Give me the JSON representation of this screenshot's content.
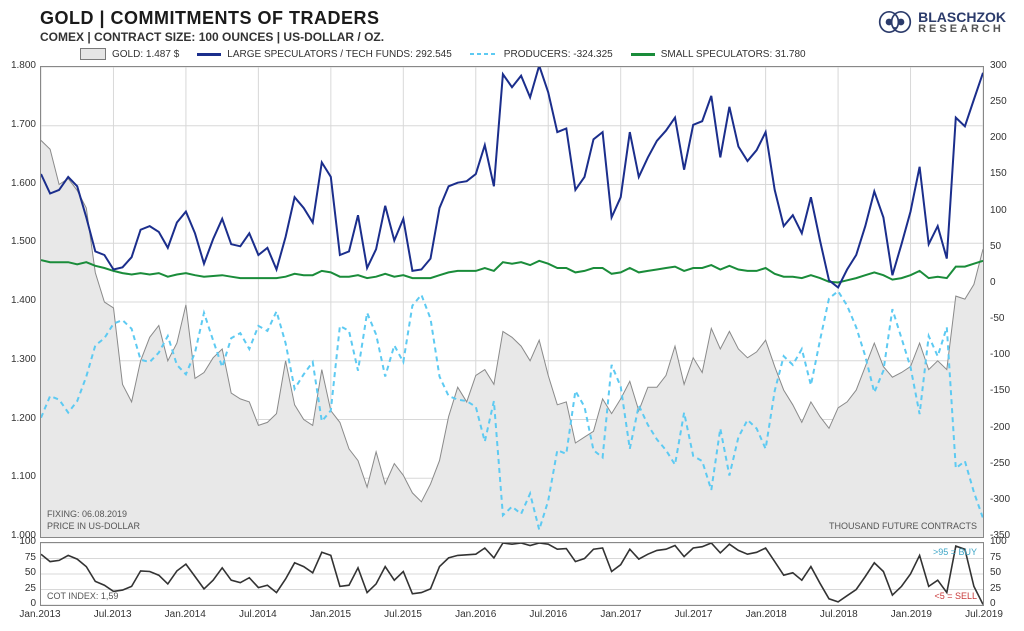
{
  "title": "GOLD | COMMITMENTS OF TRADERS",
  "subtitle": "COMEX | CONTRACT SIZE: 100 OUNCES | US-DOLLAR / OZ.",
  "logo": {
    "line1": "BLASCHZOK",
    "line2": "RESEARCH"
  },
  "fixing_text": "FIXING: 06.08.2019",
  "price_unit_text": "PRICE IN US-DOLLAR",
  "right_unit_text": "THOUSAND FUTURE CONTRACTS",
  "cot_index_text": "COT INDEX: 1,59",
  "buy_label": ">95 = BUY",
  "sell_label": "<5 = SELL",
  "legend": {
    "gold": {
      "label": "GOLD: 1.487 $",
      "color": "#e5e5e5",
      "stroke": "#7a7a7a"
    },
    "large_spec": {
      "label": "LARGE SPECULATORS / TECH FUNDS: 292.545",
      "color": "#1b2e8c"
    },
    "producers": {
      "label": "PRODUCERS: -324.325",
      "color": "#5dcaf2"
    },
    "small_spec": {
      "label": "SMALL SPECULATORS: 31.780",
      "color": "#1a8c3a"
    }
  },
  "colors": {
    "grid": "#d8d8d8",
    "axis": "#888888",
    "gold_fill": "#e8e8e8",
    "gold_stroke": "#8a8a8a",
    "large_spec": "#1b2e8c",
    "producers": "#5dcaf2",
    "small_spec": "#1a8c3a",
    "cot": "#333333",
    "buy_text": "#3ea6c7",
    "sell_text": "#c93b3b",
    "text": "#333333"
  },
  "main_chart": {
    "left_axis": {
      "min": 1000,
      "max": 1800,
      "step": 100
    },
    "right_axis": {
      "min": -350,
      "max": 300,
      "step": 50
    },
    "x_labels": [
      "Jan.2013",
      "Jul.2013",
      "Jan.2014",
      "Jul.2014",
      "Jan.2015",
      "Jul.2015",
      "Jan.2016",
      "Jul.2016",
      "Jan.2017",
      "Jul.2017",
      "Jan.2018",
      "Jul.2018",
      "Jan.2019",
      "Jul.2019"
    ],
    "gold_series": [
      1675,
      1660,
      1600,
      1610,
      1590,
      1560,
      1450,
      1400,
      1390,
      1260,
      1230,
      1300,
      1340,
      1360,
      1300,
      1330,
      1395,
      1270,
      1280,
      1305,
      1320,
      1245,
      1235,
      1230,
      1190,
      1195,
      1210,
      1300,
      1225,
      1200,
      1190,
      1285,
      1215,
      1195,
      1150,
      1130,
      1085,
      1145,
      1090,
      1125,
      1105,
      1075,
      1060,
      1090,
      1130,
      1205,
      1255,
      1230,
      1275,
      1285,
      1260,
      1350,
      1340,
      1325,
      1300,
      1335,
      1275,
      1225,
      1230,
      1160,
      1170,
      1180,
      1235,
      1210,
      1235,
      1265,
      1215,
      1255,
      1255,
      1275,
      1325,
      1260,
      1305,
      1280,
      1355,
      1320,
      1350,
      1320,
      1305,
      1315,
      1335,
      1290,
      1250,
      1225,
      1195,
      1230,
      1205,
      1185,
      1220,
      1230,
      1250,
      1290,
      1330,
      1290,
      1272,
      1280,
      1290,
      1330,
      1285,
      1300,
      1285,
      1410,
      1405,
      1430,
      1490
    ],
    "large_spec_series": [
      152,
      125,
      130,
      148,
      135,
      92,
      45,
      40,
      20,
      23,
      37,
      75,
      80,
      72,
      50,
      85,
      100,
      70,
      28,
      62,
      90,
      55,
      52,
      70,
      40,
      50,
      20,
      65,
      120,
      105,
      85,
      168,
      148,
      40,
      45,
      95,
      22,
      48,
      108,
      60,
      90,
      18,
      20,
      35,
      105,
      135,
      140,
      142,
      152,
      192,
      135,
      290,
      272,
      288,
      258,
      302,
      265,
      210,
      215,
      130,
      148,
      200,
      210,
      92,
      120,
      210,
      148,
      175,
      198,
      212,
      230,
      158,
      220,
      225,
      260,
      175,
      245,
      190,
      170,
      185,
      210,
      130,
      80,
      95,
      70,
      120,
      60,
      5,
      -5,
      20,
      40,
      80,
      128,
      92,
      12,
      55,
      100,
      162,
      55,
      80,
      35,
      230,
      218,
      255,
      292
    ],
    "producers_series": [
      -185,
      -155,
      -160,
      -178,
      -162,
      -128,
      -85,
      -75,
      -55,
      -50,
      -62,
      -105,
      -108,
      -95,
      -72,
      -112,
      -125,
      -95,
      -40,
      -78,
      -115,
      -75,
      -68,
      -90,
      -58,
      -65,
      -38,
      -82,
      -145,
      -125,
      -108,
      -190,
      -175,
      -58,
      -65,
      -120,
      -40,
      -70,
      -128,
      -85,
      -108,
      -30,
      -15,
      -48,
      -128,
      -155,
      -160,
      -162,
      -170,
      -218,
      -162,
      -320,
      -308,
      -318,
      -290,
      -340,
      -300,
      -230,
      -235,
      -148,
      -170,
      -230,
      -240,
      -112,
      -142,
      -228,
      -168,
      -195,
      -215,
      -230,
      -250,
      -178,
      -238,
      -245,
      -285,
      -200,
      -265,
      -212,
      -188,
      -200,
      -228,
      -148,
      -100,
      -112,
      -90,
      -140,
      -78,
      -20,
      -10,
      -30,
      -60,
      -100,
      -150,
      -120,
      -35,
      -75,
      -115,
      -180,
      -72,
      -100,
      -60,
      -255,
      -245,
      -288,
      -324
    ],
    "small_spec_series": [
      33,
      30,
      30,
      30,
      27,
      30,
      25,
      22,
      18,
      15,
      13,
      15,
      13,
      15,
      10,
      13,
      15,
      12,
      10,
      11,
      12,
      10,
      8,
      8,
      8,
      8,
      8,
      10,
      14,
      12,
      12,
      18,
      16,
      10,
      10,
      12,
      8,
      10,
      14,
      10,
      12,
      8,
      8,
      8,
      12,
      16,
      18,
      18,
      18,
      22,
      18,
      30,
      28,
      30,
      26,
      32,
      28,
      22,
      22,
      16,
      18,
      22,
      22,
      14,
      16,
      22,
      16,
      18,
      20,
      22,
      24,
      18,
      22,
      22,
      26,
      20,
      25,
      20,
      18,
      18,
      22,
      14,
      10,
      10,
      8,
      12,
      8,
      3,
      2,
      5,
      8,
      12,
      16,
      12,
      6,
      8,
      12,
      18,
      8,
      10,
      8,
      24,
      24,
      28,
      32
    ]
  },
  "cot_chart": {
    "axis": {
      "min": 0,
      "max": 100,
      "step": 25
    },
    "series": [
      82,
      70,
      72,
      80,
      74,
      62,
      38,
      32,
      22,
      24,
      30,
      55,
      54,
      48,
      34,
      55,
      66,
      46,
      26,
      40,
      60,
      40,
      36,
      44,
      28,
      32,
      20,
      42,
      68,
      62,
      52,
      85,
      80,
      30,
      32,
      60,
      20,
      34,
      62,
      40,
      54,
      18,
      20,
      26,
      62,
      76,
      80,
      81,
      82,
      92,
      76,
      100,
      98,
      100,
      96,
      100,
      98,
      90,
      91,
      70,
      75,
      90,
      92,
      54,
      65,
      90,
      74,
      82,
      88,
      90,
      96,
      78,
      92,
      94,
      100,
      84,
      98,
      88,
      82,
      85,
      92,
      70,
      48,
      52,
      40,
      62,
      35,
      10,
      5,
      15,
      25,
      46,
      68,
      54,
      16,
      30,
      50,
      80,
      30,
      40,
      20,
      95,
      90,
      30,
      1
    ]
  }
}
